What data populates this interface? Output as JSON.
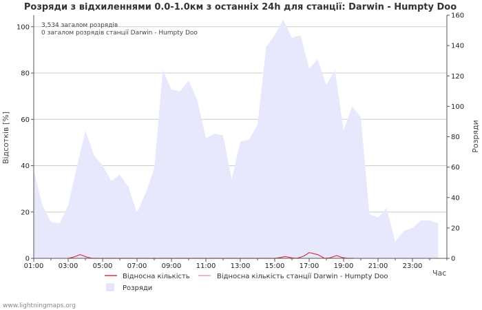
{
  "chart_data": {
    "type": "area",
    "title": "Розряди з відхиленнями 0.0-1.0км з останніх 24h для станції: Darwin - Humpty Doo",
    "ylabel_left": "Відсотків  [%]",
    "ylabel_right": "Розряди",
    "xlabel": "Час",
    "ylim_left": [
      0,
      105
    ],
    "ylim_right": [
      0,
      160
    ],
    "y_ticks_left": [
      0,
      20,
      40,
      60,
      80,
      100
    ],
    "y_ticks_right": [
      0,
      20,
      40,
      60,
      80,
      100,
      120,
      140,
      160
    ],
    "x_range": [
      1,
      25
    ],
    "x_ticks": [
      {
        "x": 1,
        "label": "01:00"
      },
      {
        "x": 3,
        "label": "03:00"
      },
      {
        "x": 5,
        "label": "05:00"
      },
      {
        "x": 7,
        "label": "07:00"
      },
      {
        "x": 9,
        "label": "09:00"
      },
      {
        "x": 11,
        "label": "11:00"
      },
      {
        "x": 13,
        "label": "13:00"
      },
      {
        "x": 15,
        "label": "15:00"
      },
      {
        "x": 17,
        "label": "17:00"
      },
      {
        "x": 19,
        "label": "19:00"
      },
      {
        "x": 21,
        "label": "21:00"
      },
      {
        "x": 23,
        "label": "23:00"
      }
    ],
    "annotations": [
      "3,534 загалом розрядів",
      "0 загалом розрядів станції Darwin - Humpty Doo"
    ],
    "series": [
      {
        "name": "Розряди",
        "axis": "right",
        "color": "#e8e8fc",
        "x": [
          1.0,
          1.5,
          2.0,
          2.5,
          3.0,
          3.5,
          4.0,
          4.5,
          5.0,
          5.5,
          6.0,
          6.5,
          7.0,
          7.5,
          8.0,
          8.5,
          9.0,
          9.5,
          10.0,
          10.5,
          11.0,
          11.5,
          12.0,
          12.5,
          13.0,
          13.5,
          14.0,
          14.5,
          15.0,
          15.5,
          16.0,
          16.5,
          17.0,
          17.5,
          18.0,
          18.5,
          19.0,
          19.5,
          20.0,
          20.5,
          21.0,
          21.5,
          22.0,
          22.5,
          23.0,
          23.5,
          24.0,
          24.5
        ],
        "values": [
          58,
          35,
          24,
          23,
          35,
          60,
          84,
          68,
          61,
          51,
          55,
          47,
          30,
          43,
          59,
          124,
          111,
          110,
          117,
          104,
          79,
          82,
          81,
          52,
          77,
          78,
          88,
          139,
          147,
          157,
          145,
          147,
          125,
          131,
          114,
          124,
          84,
          100,
          93,
          29,
          27,
          33,
          11,
          18,
          20,
          25,
          25,
          23
        ]
      },
      {
        "name": "Відносна кількість",
        "axis": "left",
        "color": "#d9304a",
        "x": [
          3.0,
          3.3,
          3.7,
          4.1,
          4.4,
          15.0,
          15.3,
          15.6,
          16.0,
          16.3,
          16.7,
          17.0,
          17.5,
          17.9,
          18.2,
          18.6,
          18.9,
          19.2,
          19.6
        ],
        "values": [
          0,
          0.5,
          1.6,
          0.5,
          0,
          0,
          0.3,
          0.8,
          0.2,
          0,
          1.0,
          2.5,
          1.6,
          0,
          0.2,
          1.2,
          0.4,
          0,
          0
        ]
      },
      {
        "name": "Відносна кількість станції Darwin - Humpty Doo",
        "axis": "left",
        "color": "#f2a4a4",
        "x": [],
        "values": []
      }
    ]
  },
  "footer": "www.lightningmaps.org"
}
